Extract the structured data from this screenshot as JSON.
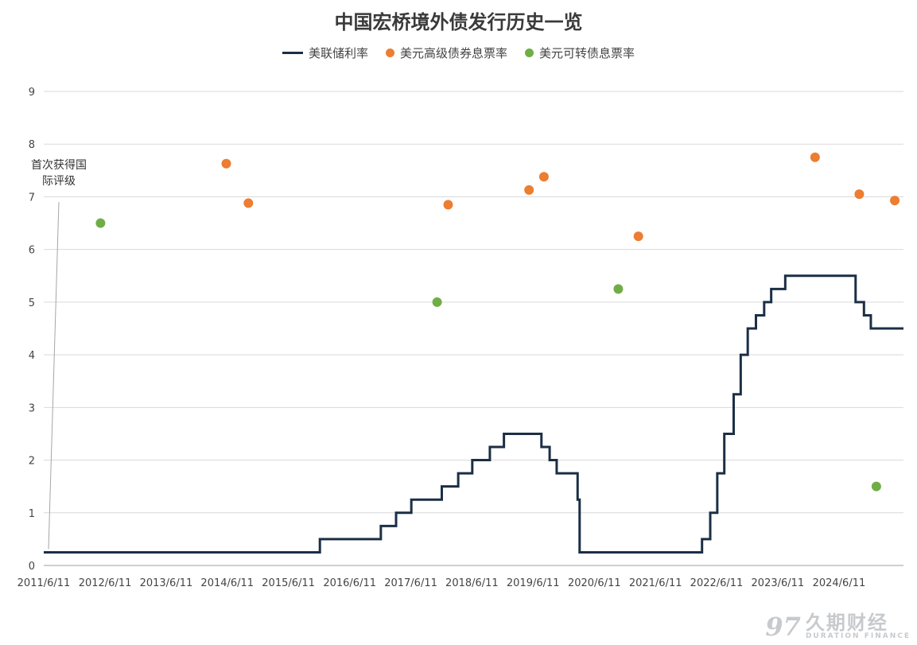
{
  "chart_data": {
    "type": "line",
    "title": "中国宏桥境外债发行历史一览",
    "xlabel": "",
    "ylabel": "",
    "ylim": [
      0,
      9
    ],
    "yticks": [
      "0",
      "1",
      "2",
      "3",
      "4",
      "5",
      "6",
      "7",
      "8",
      "9"
    ],
    "xlim": [
      "2011-06-11",
      "2025-07-01"
    ],
    "xticks": [
      "2011/6/11",
      "2012/6/11",
      "2013/6/11",
      "2014/6/11",
      "2015/6/11",
      "2016/6/11",
      "2017/6/11",
      "2018/6/11",
      "2019/6/11",
      "2020/6/11",
      "2021/6/11",
      "2022/6/11",
      "2023/6/11",
      "2024/6/11"
    ],
    "grid": true,
    "legend_position": "top",
    "series": [
      {
        "name": "美联储利率",
        "kind": "step-line",
        "color": "#1b2f45",
        "points": [
          [
            "2011-06-11",
            0.25
          ],
          [
            "2015-12-16",
            0.5
          ],
          [
            "2016-12-14",
            0.75
          ],
          [
            "2017-03-15",
            1.0
          ],
          [
            "2017-06-14",
            1.25
          ],
          [
            "2017-12-13",
            1.5
          ],
          [
            "2018-03-21",
            1.75
          ],
          [
            "2018-06-13",
            2.0
          ],
          [
            "2018-09-26",
            2.25
          ],
          [
            "2018-12-19",
            2.5
          ],
          [
            "2019-07-31",
            2.25
          ],
          [
            "2019-09-18",
            2.0
          ],
          [
            "2019-10-30",
            1.75
          ],
          [
            "2020-03-03",
            1.25
          ],
          [
            "2020-03-15",
            0.25
          ],
          [
            "2022-03-16",
            0.5
          ],
          [
            "2022-05-04",
            1.0
          ],
          [
            "2022-06-15",
            1.75
          ],
          [
            "2022-07-27",
            2.5
          ],
          [
            "2022-09-21",
            3.25
          ],
          [
            "2022-11-02",
            4.0
          ],
          [
            "2022-12-14",
            4.5
          ],
          [
            "2023-02-01",
            4.75
          ],
          [
            "2023-03-22",
            5.0
          ],
          [
            "2023-05-03",
            5.25
          ],
          [
            "2023-07-26",
            5.5
          ],
          [
            "2024-09-18",
            5.0
          ],
          [
            "2024-11-07",
            4.75
          ],
          [
            "2024-12-18",
            4.5
          ],
          [
            "2025-07-01",
            4.5
          ]
        ]
      },
      {
        "name": "美元高级债券息票率",
        "kind": "scatter",
        "color": "#ed7d31",
        "points": [
          [
            "2014-06-05",
            7.63
          ],
          [
            "2014-10-15",
            6.88
          ],
          [
            "2018-01-20",
            6.85
          ],
          [
            "2019-05-18",
            7.13
          ],
          [
            "2019-08-15",
            7.38
          ],
          [
            "2021-03-01",
            6.25
          ],
          [
            "2024-01-20",
            7.75
          ],
          [
            "2024-10-10",
            7.05
          ],
          [
            "2025-05-10",
            6.93
          ]
        ]
      },
      {
        "name": "美元可转债息票率",
        "kind": "scatter",
        "color": "#70ad47",
        "points": [
          [
            "2012-05-15",
            6.5
          ],
          [
            "2017-11-15",
            5.0
          ],
          [
            "2020-11-01",
            5.25
          ],
          [
            "2025-01-20",
            1.5
          ]
        ]
      }
    ],
    "annotations": [
      {
        "text_lines": [
          "首次获得国",
          "际评级"
        ],
        "date": "2011-06-11",
        "y": 0.25
      }
    ]
  },
  "watermark": {
    "logo_glyph": "97",
    "name_cn": "久期财经",
    "name_en": "DURATION FINANCE"
  },
  "colors": {
    "grid": "#d9d9d9",
    "axis": "#bfbfbf"
  }
}
